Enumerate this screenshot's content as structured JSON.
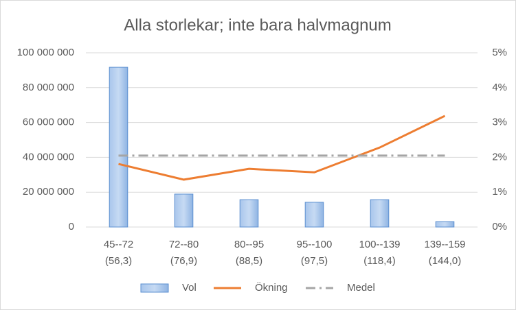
{
  "chart_data": {
    "type": "combo",
    "title": "Alla storlekar; inte bara halvmagnum",
    "categories": [
      [
        "45--72",
        "(56,3)"
      ],
      [
        "72--80",
        "(76,9)"
      ],
      [
        "80--95",
        "(88,5)"
      ],
      [
        "95--100",
        "(97,5)"
      ],
      [
        "100--139",
        "(118,4)"
      ],
      [
        "139--159",
        "(144,0)"
      ]
    ],
    "series": [
      {
        "name": "Vol",
        "type": "bar",
        "color": "#8fb4e3",
        "values": [
          91700000,
          18900000,
          15700000,
          14200000,
          15700000,
          3100000
        ]
      },
      {
        "name": "Ökning",
        "type": "line",
        "axis": "y2",
        "color": "#ed7d31",
        "values": [
          1.81,
          1.36,
          1.67,
          1.57,
          2.28,
          3.19
        ]
      },
      {
        "name": "Medel",
        "type": "line",
        "axis": "y2",
        "dash": "dashdot",
        "color": "#a5a5a5",
        "values": [
          2.05,
          2.05,
          2.05,
          2.05,
          2.05,
          2.05
        ]
      }
    ],
    "ylim": [
      0,
      100000000
    ],
    "yticks": [
      0,
      {
        "value": 20000000,
        "label": "20 000 000"
      },
      {
        "value": 40000000,
        "label": "40 000 000"
      },
      {
        "value": 60000000,
        "label": "60 000 000"
      },
      {
        "value": 80000000,
        "label": "80 000 000"
      },
      {
        "value": 100000000,
        "label": "100 000 000"
      }
    ],
    "y2lim": [
      0,
      5
    ],
    "y2ticks": [
      {
        "value": 0,
        "label": "0%"
      },
      {
        "value": 1,
        "label": "1%"
      },
      {
        "value": 2,
        "label": "2%"
      },
      {
        "value": 3,
        "label": "3%"
      },
      {
        "value": 4,
        "label": "4%"
      },
      {
        "value": 5,
        "label": "5%"
      }
    ],
    "grid": true,
    "legend": "bottom"
  }
}
